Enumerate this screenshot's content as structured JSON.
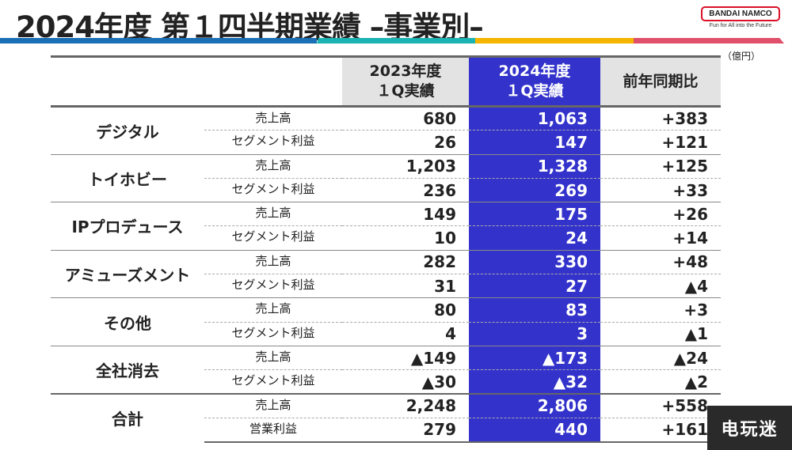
{
  "header": {
    "title": "2024年度 第１四半期業績 –事業別–",
    "logo": "BANDAI NAMCO",
    "logo_tagline": "Fun for All into the Future",
    "unit": "（億円）"
  },
  "colors": {
    "blue_col": "#3333cc",
    "bar": [
      "#1a6fb5",
      "#1bb3b3",
      "#f5b400",
      "#e0506a"
    ]
  },
  "table": {
    "headers": [
      "2023年度\n１Q実績",
      "2024年度\n１Q実績",
      "前年同期比"
    ],
    "groups": [
      {
        "name": "デジタル",
        "rows": [
          {
            "label": "売上高",
            "v23": "680",
            "v24": "1,063",
            "diff": "+383"
          },
          {
            "label": "セグメント利益",
            "v23": "26",
            "v24": "147",
            "diff": "+121"
          }
        ]
      },
      {
        "name": "トイホビー",
        "rows": [
          {
            "label": "売上高",
            "v23": "1,203",
            "v24": "1,328",
            "diff": "+125"
          },
          {
            "label": "セグメント利益",
            "v23": "236",
            "v24": "269",
            "diff": "+33"
          }
        ]
      },
      {
        "name": "IPプロデュース",
        "rows": [
          {
            "label": "売上高",
            "v23": "149",
            "v24": "175",
            "diff": "+26"
          },
          {
            "label": "セグメント利益",
            "v23": "10",
            "v24": "24",
            "diff": "+14"
          }
        ]
      },
      {
        "name": "アミューズメント",
        "rows": [
          {
            "label": "売上高",
            "v23": "282",
            "v24": "330",
            "diff": "+48"
          },
          {
            "label": "セグメント利益",
            "v23": "31",
            "v24": "27",
            "diff": "▲4"
          }
        ]
      },
      {
        "name": "その他",
        "rows": [
          {
            "label": "売上高",
            "v23": "80",
            "v24": "83",
            "diff": "+3"
          },
          {
            "label": "セグメント利益",
            "v23": "4",
            "v24": "3",
            "diff": "▲1"
          }
        ]
      },
      {
        "name": "全社消去",
        "rows": [
          {
            "label": "売上高",
            "v23": "▲149",
            "v24": "▲173",
            "diff": "▲24"
          },
          {
            "label": "セグメント利益",
            "v23": "▲30",
            "v24": "▲32",
            "diff": "▲2"
          }
        ]
      },
      {
        "name": "合計",
        "rows": [
          {
            "label": "売上高",
            "v23": "2,248",
            "v24": "2,806",
            "diff": "+558"
          },
          {
            "label": "営業利益",
            "v23": "279",
            "v24": "440",
            "diff": "+161"
          }
        ]
      }
    ]
  },
  "watermark": "电玩迷"
}
